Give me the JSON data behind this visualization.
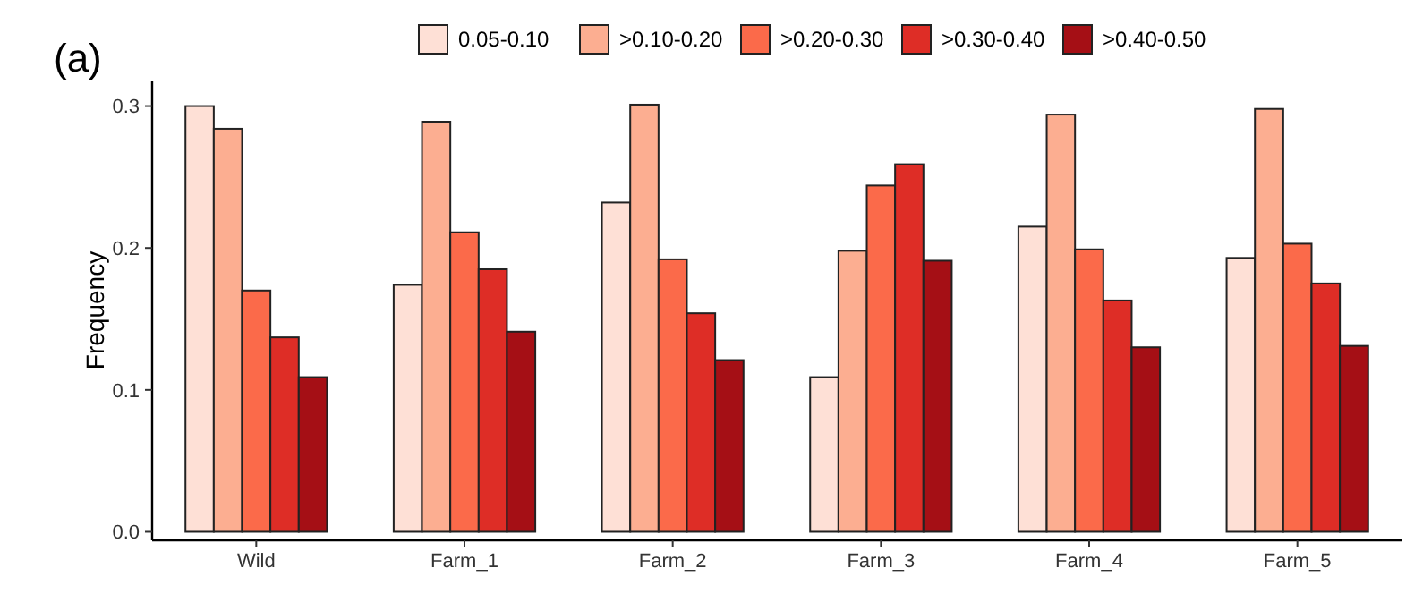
{
  "chart_data": {
    "type": "bar",
    "annotations": [
      "(a)"
    ],
    "ylabel": "Frequency",
    "categories": [
      "Wild",
      "Farm_1",
      "Farm_2",
      "Farm_3",
      "Farm_4",
      "Farm_5"
    ],
    "series": [
      {
        "name": "0.05-0.10",
        "color": "#fee0d6",
        "values": [
          0.3,
          0.174,
          0.232,
          0.109,
          0.215,
          0.193
        ]
      },
      {
        "name": ">0.10-0.20",
        "color": "#fcae91",
        "values": [
          0.284,
          0.289,
          0.301,
          0.198,
          0.294,
          0.298
        ]
      },
      {
        "name": ">0.20-0.30",
        "color": "#fb6a4a",
        "values": [
          0.17,
          0.211,
          0.192,
          0.244,
          0.199,
          0.203
        ]
      },
      {
        "name": ">0.30-0.40",
        "color": "#de2d26",
        "values": [
          0.137,
          0.185,
          0.154,
          0.259,
          0.163,
          0.175
        ]
      },
      {
        "name": ">0.40-0.50",
        "color": "#a50f15",
        "values": [
          0.109,
          0.141,
          0.121,
          0.191,
          0.13,
          0.131
        ]
      }
    ],
    "ylim": [
      -0.006,
      0.318
    ],
    "yticks": [
      {
        "value": 0,
        "label": "0.0"
      },
      0.1,
      0.2,
      0.3
    ],
    "grid": false,
    "legend": "top"
  }
}
